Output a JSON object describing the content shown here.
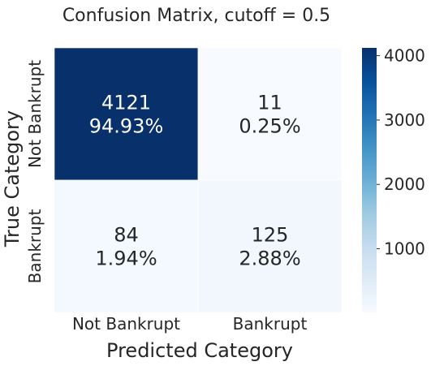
{
  "chart_data": {
    "type": "heatmap",
    "title": "Confusion Matrix, cutoff = 0.5",
    "xlabel": "Predicted Category",
    "ylabel": "True Category",
    "x_categories": [
      "Not Bankrupt",
      "Bankrupt"
    ],
    "y_categories": [
      "Not Bankrupt",
      "Bankrupt"
    ],
    "values": [
      [
        4121,
        11
      ],
      [
        84,
        125
      ]
    ],
    "percent_labels": [
      [
        "94.93%",
        "0.25%"
      ],
      [
        "1.94%",
        "2.88%"
      ]
    ],
    "colormap": "Blues",
    "colorbar": {
      "ticks": [
        1000,
        2000,
        3000,
        4000
      ],
      "tick_labels": [
        "1000",
        "2000",
        "3000",
        "4000"
      ],
      "range": [
        11,
        4121
      ]
    },
    "colors": {
      "low": "#f7fbff",
      "high": "#08306b",
      "text_dark": "#262626",
      "text_light": "#ffffff"
    }
  }
}
